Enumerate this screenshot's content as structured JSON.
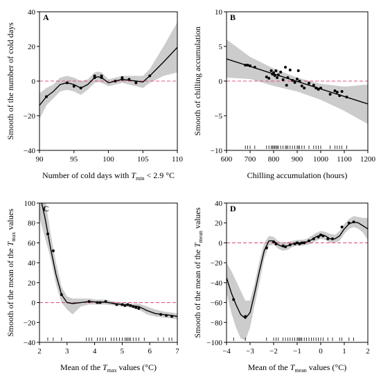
{
  "chart_data": [
    {
      "type": "line",
      "panel_label": "A",
      "xlabel_parts": [
        "Number of cold days with ",
        "T",
        "min",
        " < 2.9 °C"
      ],
      "ylabel_parts": [
        "Smooth of the number of cold days"
      ],
      "xlim": [
        90,
        110
      ],
      "ylim": [
        -40,
        40
      ],
      "xticks": [
        90,
        95,
        100,
        105,
        110
      ],
      "yticks": [
        -40,
        -20,
        0,
        20,
        40
      ],
      "reference_line": 0,
      "colors": {
        "curve": "#000000",
        "band": "#cccccc",
        "reference": "#e0557a"
      },
      "curve": {
        "x": [
          90,
          91,
          92,
          93,
          94,
          95,
          96,
          97,
          98,
          98.5,
          99,
          100,
          101,
          102,
          103,
          104,
          105,
          106,
          108,
          110
        ],
        "y": [
          -14,
          -9,
          -6,
          -2,
          -1,
          -2,
          -4,
          -2,
          2,
          2.5,
          2,
          -1,
          0,
          1,
          0.5,
          0,
          -0.5,
          3,
          11,
          19.5
        ]
      },
      "band": {
        "upper": [
          -7,
          -4,
          -2,
          2,
          3,
          2,
          0,
          1,
          5,
          5.5,
          5,
          1,
          2,
          3,
          3,
          3,
          3,
          7,
          20,
          34
        ],
        "lower": [
          -22,
          -14,
          -10,
          -6,
          -5,
          -6,
          -8,
          -5,
          -1,
          -0.5,
          -1,
          -3,
          -2,
          -1,
          -2,
          -3,
          -4,
          -1,
          3,
          5
        ]
      },
      "points": {
        "x": [
          91,
          94,
          95,
          96,
          98,
          98,
          99,
          99,
          101,
          102,
          102,
          103,
          104,
          106
        ],
        "y": [
          -9,
          -1,
          -3,
          -4,
          2,
          3,
          3,
          2,
          0,
          1,
          2,
          1,
          -1,
          3
        ]
      },
      "rug": []
    },
    {
      "type": "line",
      "panel_label": "B",
      "xlabel_parts": [
        "Chilling accumulation (hours)"
      ],
      "ylabel_parts": [
        "Smooth of chilling accumulation"
      ],
      "xlim": [
        600,
        1200
      ],
      "ylim": [
        -10,
        10
      ],
      "xticks": [
        600,
        700,
        800,
        900,
        1000,
        1100,
        1200
      ],
      "yticks": [
        -10,
        -5,
        0,
        5,
        10
      ],
      "reference_line": 0,
      "colors": {
        "curve": "#000000",
        "band": "#cccccc",
        "reference": "#e0557a"
      },
      "curve": {
        "x": [
          600,
          1200
        ],
        "y": [
          3.2,
          -3.3
        ]
      },
      "band": {
        "x": [
          600,
          700,
          800,
          900,
          1000,
          1100,
          1200
        ],
        "upper": [
          6,
          3.5,
          1.8,
          0.5,
          -0.4,
          -0.8,
          -0.5
        ],
        "lower": [
          0.5,
          0.3,
          -0.7,
          -1.5,
          -2.7,
          -4.3,
          -6.2
        ]
      },
      "points": {
        "x": [
          680,
          690,
          700,
          720,
          770,
          780,
          790,
          795,
          800,
          805,
          810,
          815,
          820,
          830,
          840,
          850,
          855,
          860,
          870,
          880,
          890,
          900,
          905,
          910,
          920,
          930,
          950,
          970,
          980,
          990,
          1000,
          1040,
          1060,
          1070,
          1080,
          1090,
          1110
        ],
        "y": [
          2.3,
          2.3,
          2.2,
          2.0,
          0.6,
          0.4,
          1.5,
          1.0,
          1.2,
          0.8,
          1.5,
          0.5,
          0.9,
          1.3,
          0.2,
          2.0,
          -0.6,
          0.5,
          1.6,
          0.1,
          -0.2,
          0.3,
          1.5,
          0,
          -0.7,
          -1.0,
          -0.3,
          -0.6,
          -1.0,
          -1.2,
          -1.0,
          -1.9,
          -1.4,
          -1.6,
          -2.1,
          -1.5,
          -2.3
        ]
      },
      "rug": [
        680,
        690,
        700,
        720,
        770,
        780,
        790,
        795,
        800,
        805,
        810,
        815,
        820,
        830,
        840,
        850,
        855,
        860,
        870,
        880,
        890,
        900,
        905,
        910,
        920,
        930,
        950,
        970,
        980,
        990,
        1000,
        1040,
        1060,
        1070,
        1080,
        1090,
        1110
      ]
    },
    {
      "type": "line",
      "panel_label": "C",
      "xlabel_parts": [
        "Mean of the ",
        "T",
        "max",
        " values (°C)"
      ],
      "ylabel_parts": [
        "Smooth of the mean of the ",
        "T",
        "max",
        " values"
      ],
      "xlim": [
        2,
        7
      ],
      "ylim": [
        -40,
        100
      ],
      "xticks": [
        2,
        3,
        4,
        5,
        6,
        7
      ],
      "yticks": [
        -40,
        -20,
        0,
        20,
        40,
        60,
        80,
        100
      ],
      "reference_line": 0,
      "colors": {
        "curve": "#000000",
        "band": "#cccccc",
        "reference": "#e0557a"
      },
      "curve": {
        "x": [
          2.0,
          2.2,
          2.4,
          2.6,
          2.8,
          3.0,
          3.2,
          3.5,
          3.8,
          4.1,
          4.4,
          4.7,
          5.0,
          5.3,
          5.6,
          5.9,
          6.2,
          6.5,
          6.8,
          7.0
        ],
        "y": [
          110,
          85,
          55,
          28,
          8,
          0,
          -1,
          0,
          1,
          0.5,
          0.5,
          -1,
          -2,
          -3,
          -4,
          -8,
          -11,
          -12,
          -13,
          -14
        ]
      },
      "band": {
        "upper": [
          150,
          105,
          70,
          40,
          16,
          6,
          4,
          4,
          4,
          3,
          3,
          1,
          0,
          -1,
          -1,
          -4,
          -7,
          -9,
          -10,
          -11
        ],
        "lower": [
          85,
          65,
          45,
          18,
          0,
          -7,
          -12,
          -4,
          -2,
          -2,
          -2,
          -3,
          -4,
          -5,
          -7,
          -12,
          -14,
          -15,
          -16,
          -17
        ]
      },
      "points": {
        "x": [
          2.3,
          2.5,
          2.8,
          3.8,
          4.1,
          4.2,
          4.4,
          4.8,
          5.0,
          5.1,
          5.2,
          5.3,
          5.4,
          5.5,
          5.6,
          6.4,
          6.6,
          6.8
        ],
        "y": [
          69,
          52,
          8,
          1,
          0,
          0,
          1,
          -2,
          -2,
          -3,
          -2,
          -3,
          -4,
          -5,
          -6,
          -12,
          -13,
          -14
        ]
      },
      "rug": [
        2.3,
        2.5,
        2.8,
        3.7,
        3.8,
        3.9,
        4.1,
        4.2,
        4.3,
        4.4,
        4.6,
        4.7,
        4.8,
        4.9,
        5.0,
        5.1,
        5.15,
        5.2,
        5.25,
        5.3,
        5.4,
        5.5,
        5.6,
        5.8,
        6.3,
        6.5,
        6.7,
        6.8
      ]
    },
    {
      "type": "line",
      "panel_label": "D",
      "xlabel_parts": [
        "Mean of the ",
        "T",
        "mean",
        " values (°C)"
      ],
      "ylabel_parts": [
        "Smooth of the mean of the ",
        "T",
        "mean",
        " values"
      ],
      "xlim": [
        -4,
        2
      ],
      "ylim": [
        -100,
        40
      ],
      "xticks": [
        -4,
        -3,
        -2,
        -1,
        0,
        1,
        2
      ],
      "yticks": [
        -100,
        -80,
        -60,
        -40,
        -20,
        0,
        20,
        40
      ],
      "reference_line": 0,
      "colors": {
        "curve": "#000000",
        "band": "#cccccc",
        "reference": "#e0557a"
      },
      "curve": {
        "x": [
          -4.0,
          -3.8,
          -3.6,
          -3.4,
          -3.2,
          -3.0,
          -2.8,
          -2.6,
          -2.4,
          -2.2,
          -2.0,
          -1.8,
          -1.6,
          -1.4,
          -1.2,
          -1.0,
          -0.8,
          -0.6,
          -0.4,
          -0.2,
          0.0,
          0.2,
          0.4,
          0.6,
          0.8,
          1.0,
          1.2,
          1.4,
          1.6,
          1.8,
          2.0
        ],
        "y": [
          -35,
          -50,
          -62,
          -72,
          -76,
          -70,
          -50,
          -28,
          -8,
          2,
          2,
          -2,
          -4,
          -3,
          -1,
          0,
          0,
          1,
          3,
          6,
          8,
          7,
          4,
          4,
          7,
          14,
          19,
          21,
          20,
          17,
          14
        ]
      },
      "band": {
        "upper": [
          -20,
          -28,
          -38,
          -48,
          -58,
          -58,
          -40,
          -18,
          0,
          7,
          6,
          2,
          0,
          1,
          2,
          3,
          3,
          4,
          7,
          10,
          12,
          11,
          9,
          8,
          12,
          19,
          24,
          27,
          26,
          25,
          25
        ],
        "lower": [
          -50,
          -70,
          -85,
          -96,
          -98,
          -85,
          -62,
          -40,
          -16,
          -3,
          -2,
          -6,
          -8,
          -7,
          -4,
          -3,
          -3,
          -2,
          -1,
          2,
          4,
          3,
          0,
          0,
          2,
          9,
          14,
          16,
          14,
          10,
          3
        ]
      },
      "points": {
        "x": [
          -3.7,
          -3.2,
          -2.3,
          -2.0,
          -1.9,
          -1.6,
          -1.5,
          -1.3,
          -1.1,
          -1.0,
          -0.9,
          -0.8,
          -0.7,
          -0.5,
          -0.3,
          -0.1,
          0.0,
          0.1,
          0.3,
          0.5,
          0.9,
          1.2,
          1.4
        ],
        "y": [
          -57,
          -74,
          -5,
          1,
          -1,
          -3,
          -4,
          -2,
          -1,
          0,
          -1,
          0,
          0,
          2,
          4,
          6,
          8,
          7,
          4,
          4,
          16,
          20,
          21
        ]
      },
      "rug": [
        -3.7,
        -3.2,
        -2.3,
        -2.0,
        -1.9,
        -1.8,
        -1.6,
        -1.5,
        -1.4,
        -1.3,
        -1.2,
        -1.1,
        -1.0,
        -0.95,
        -0.9,
        -0.85,
        -0.8,
        -0.7,
        -0.6,
        -0.5,
        -0.4,
        -0.3,
        -0.2,
        -0.1,
        0.0,
        0.1,
        0.3,
        0.5,
        0.8,
        0.9,
        1.2,
        1.4
      ]
    }
  ]
}
